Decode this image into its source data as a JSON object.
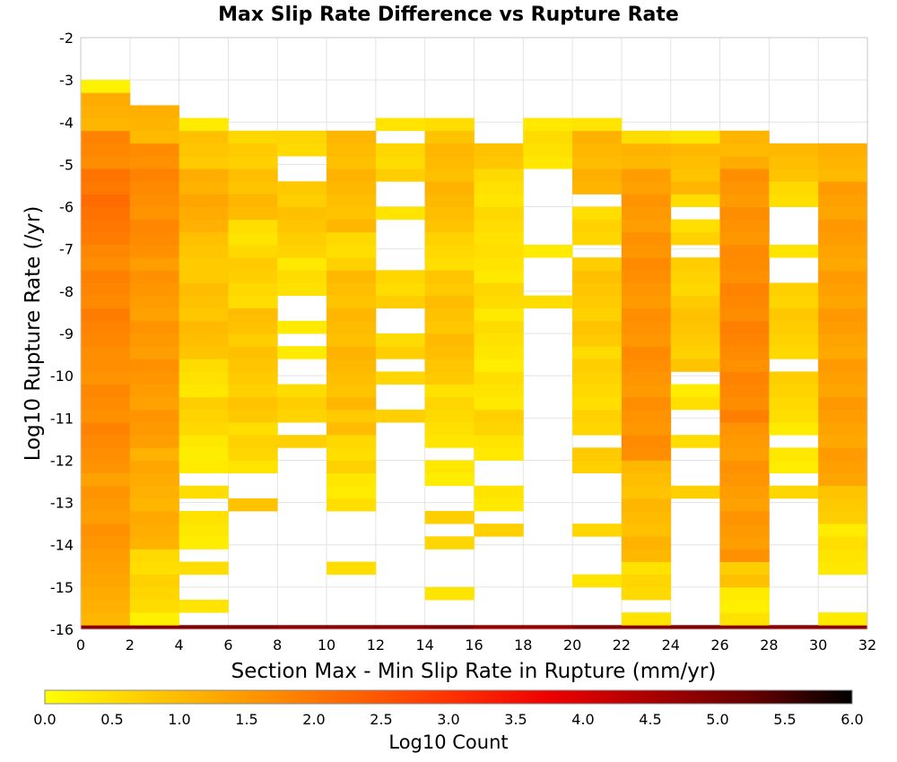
{
  "chart_data": {
    "type": "heatmap",
    "title": "Max Slip Rate Difference vs Rupture Rate",
    "xlabel": "Section Max - Min Slip Rate in Rupture (mm/yr)",
    "ylabel": "Log10 Rupture Rate (/yr)",
    "xlim": [
      0,
      32
    ],
    "ylim": [
      -16,
      -2
    ],
    "x_ticks": [
      "0",
      "2",
      "4",
      "6",
      "8",
      "10",
      "12",
      "14",
      "16",
      "18",
      "20",
      "22",
      "24",
      "26",
      "28",
      "30",
      "32"
    ],
    "y_ticks": [
      "-2",
      "-3",
      "-4",
      "-5",
      "-6",
      "-7",
      "-8",
      "-9",
      "-10",
      "-11",
      "-12",
      "-13",
      "-14",
      "-15",
      "-16"
    ],
    "x_bin_width": 2,
    "y_bin_height": 0.3,
    "grid": true,
    "colorbar": {
      "label": "Log10 Count",
      "range": [
        0,
        6
      ],
      "ticks": [
        "0.0",
        "0.5",
        "1.0",
        "1.5",
        "2.0",
        "2.5",
        "3.0",
        "3.5",
        "4.0",
        "4.5",
        "5.0",
        "5.5",
        "6.0"
      ],
      "placement": "bottom",
      "colors": [
        "#ffff00",
        "#ffcc00",
        "#ff9900",
        "#ff6600",
        "#ff3300",
        "#ee0000",
        "#aa0000",
        "#660000",
        "#000000"
      ]
    },
    "columns": [
      {
        "x0": 0,
        "runs": [
          {
            "from": -16.0,
            "to": -15.9,
            "v": 4.9
          },
          {
            "from": -15.9,
            "to": -14.7,
            "v": 1.2
          },
          {
            "from": -14.7,
            "to": -12.3,
            "v": 1.5
          },
          {
            "from": -12.3,
            "to": -9.6,
            "v": 1.7
          },
          {
            "from": -9.6,
            "to": -6.9,
            "v": 1.8
          },
          {
            "from": -6.9,
            "to": -5.1,
            "v": 2.05
          },
          {
            "from": -5.1,
            "to": -4.2,
            "v": 1.8
          },
          {
            "from": -4.2,
            "to": -3.3,
            "v": 1.2
          },
          {
            "from": -3.3,
            "to": -3.0,
            "v": 0.2
          }
        ]
      },
      {
        "x0": 2,
        "runs": [
          {
            "from": -16.0,
            "to": -15.9,
            "v": 4.9
          },
          {
            "from": -15.9,
            "to": -15.6,
            "v": 0.2
          },
          {
            "from": -15.6,
            "to": -14.1,
            "v": 0.6
          },
          {
            "from": -14.1,
            "to": -11.7,
            "v": 1.2
          },
          {
            "from": -11.7,
            "to": -7.2,
            "v": 1.5
          },
          {
            "from": -7.2,
            "to": -4.5,
            "v": 1.7
          },
          {
            "from": -4.5,
            "to": -3.6,
            "v": 1.1
          }
        ]
      },
      {
        "x0": 4,
        "runs": [
          {
            "from": -16.0,
            "to": -15.9,
            "v": 4.9
          },
          {
            "from": -15.6,
            "to": -15.3,
            "v": 0.4
          },
          {
            "from": -14.7,
            "to": -14.4,
            "v": 0.5
          },
          {
            "from": -14.1,
            "to": -13.2,
            "v": 0.3
          },
          {
            "from": -12.9,
            "to": -12.6,
            "v": 0.5
          },
          {
            "from": -12.3,
            "to": -12.0,
            "v": 0.3
          },
          {
            "from": -12.0,
            "to": -11.4,
            "v": 0.3
          },
          {
            "from": -11.4,
            "to": -10.5,
            "v": 0.6
          },
          {
            "from": -10.5,
            "to": -9.6,
            "v": 0.4
          },
          {
            "from": -9.6,
            "to": -7.5,
            "v": 0.9
          },
          {
            "from": -7.5,
            "to": -6.6,
            "v": 0.8
          },
          {
            "from": -6.6,
            "to": -5.1,
            "v": 1.2
          },
          {
            "from": -5.1,
            "to": -4.2,
            "v": 0.8
          },
          {
            "from": -4.2,
            "to": -3.9,
            "v": 0.3
          }
        ]
      },
      {
        "x0": 6,
        "runs": [
          {
            "from": -16.0,
            "to": -15.9,
            "v": 4.9
          },
          {
            "from": -13.2,
            "to": -12.9,
            "v": 0.9
          },
          {
            "from": -12.3,
            "to": -12.0,
            "v": 0.4
          },
          {
            "from": -12.0,
            "to": -11.1,
            "v": 0.6
          },
          {
            "from": -11.1,
            "to": -9.0,
            "v": 0.8
          },
          {
            "from": -9.0,
            "to": -8.4,
            "v": 0.9
          },
          {
            "from": -8.4,
            "to": -7.8,
            "v": 0.5
          },
          {
            "from": -7.8,
            "to": -6.9,
            "v": 0.7
          },
          {
            "from": -6.9,
            "to": -6.3,
            "v": 0.4
          },
          {
            "from": -6.3,
            "to": -5.1,
            "v": 1.0
          },
          {
            "from": -5.1,
            "to": -4.2,
            "v": 0.7
          }
        ]
      },
      {
        "x0": 8,
        "runs": [
          {
            "from": -16.0,
            "to": -15.9,
            "v": 4.8
          },
          {
            "from": -11.7,
            "to": -11.4,
            "v": 0.7
          },
          {
            "from": -11.1,
            "to": -10.2,
            "v": 0.6
          },
          {
            "from": -9.6,
            "to": -9.3,
            "v": 0.3
          },
          {
            "from": -9.0,
            "to": -8.7,
            "v": 0.3
          },
          {
            "from": -8.1,
            "to": -7.2,
            "v": 0.4
          },
          {
            "from": -7.2,
            "to": -6.6,
            "v": 0.6
          },
          {
            "from": -6.6,
            "to": -5.4,
            "v": 0.8
          },
          {
            "from": -4.8,
            "to": -4.2,
            "v": 0.5
          }
        ]
      },
      {
        "x0": 10,
        "runs": [
          {
            "from": -16.0,
            "to": -15.9,
            "v": 4.8
          },
          {
            "from": -14.7,
            "to": -14.4,
            "v": 0.5
          },
          {
            "from": -13.2,
            "to": -12.3,
            "v": 0.4
          },
          {
            "from": -12.3,
            "to": -11.4,
            "v": 0.6
          },
          {
            "from": -11.4,
            "to": -10.8,
            "v": 0.9
          },
          {
            "from": -10.8,
            "to": -7.5,
            "v": 1.0
          },
          {
            "from": -7.5,
            "to": -6.6,
            "v": 0.6
          },
          {
            "from": -6.6,
            "to": -4.2,
            "v": 1.0
          }
        ]
      },
      {
        "x0": 12,
        "runs": [
          {
            "from": -16.0,
            "to": -15.9,
            "v": 4.8
          },
          {
            "from": -11.1,
            "to": -10.8,
            "v": 0.7
          },
          {
            "from": -10.2,
            "to": -9.9,
            "v": 0.6
          },
          {
            "from": -9.6,
            "to": -9.0,
            "v": 0.6
          },
          {
            "from": -8.4,
            "to": -7.5,
            "v": 0.6
          },
          {
            "from": -6.3,
            "to": -6.0,
            "v": 0.4
          },
          {
            "from": -5.4,
            "to": -4.5,
            "v": 0.6
          },
          {
            "from": -4.2,
            "to": -3.9,
            "v": 0.4
          }
        ]
      },
      {
        "x0": 14,
        "runs": [
          {
            "from": -16.0,
            "to": -15.9,
            "v": 4.9
          },
          {
            "from": -15.3,
            "to": -15.0,
            "v": 0.4
          },
          {
            "from": -14.1,
            "to": -13.8,
            "v": 0.6
          },
          {
            "from": -13.5,
            "to": -13.2,
            "v": 0.7
          },
          {
            "from": -12.6,
            "to": -12.0,
            "v": 0.4
          },
          {
            "from": -11.7,
            "to": -10.2,
            "v": 0.5
          },
          {
            "from": -10.2,
            "to": -7.5,
            "v": 0.9
          },
          {
            "from": -7.5,
            "to": -6.6,
            "v": 0.6
          },
          {
            "from": -6.6,
            "to": -4.2,
            "v": 1.0
          },
          {
            "from": -4.2,
            "to": -3.9,
            "v": 0.5
          }
        ]
      },
      {
        "x0": 16,
        "runs": [
          {
            "from": -16.0,
            "to": -15.9,
            "v": 4.7
          },
          {
            "from": -13.8,
            "to": -13.5,
            "v": 0.7
          },
          {
            "from": -13.2,
            "to": -12.6,
            "v": 0.4
          },
          {
            "from": -12.0,
            "to": -11.4,
            "v": 0.4
          },
          {
            "from": -11.4,
            "to": -10.8,
            "v": 0.7
          },
          {
            "from": -10.8,
            "to": -8.4,
            "v": 0.4
          },
          {
            "from": -8.4,
            "to": -7.8,
            "v": 0.6
          },
          {
            "from": -7.8,
            "to": -6.9,
            "v": 0.4
          },
          {
            "from": -6.9,
            "to": -5.1,
            "v": 0.5
          },
          {
            "from": -5.1,
            "to": -4.5,
            "v": 0.9
          }
        ]
      },
      {
        "x0": 18,
        "runs": [
          {
            "from": -16.0,
            "to": -15.9,
            "v": 4.7
          },
          {
            "from": -8.4,
            "to": -8.1,
            "v": 0.5
          },
          {
            "from": -7.2,
            "to": -6.9,
            "v": 0.3
          },
          {
            "from": -5.1,
            "to": -3.9,
            "v": 0.4
          }
        ]
      },
      {
        "x0": 20,
        "runs": [
          {
            "from": -16.0,
            "to": -15.9,
            "v": 4.9
          },
          {
            "from": -15.0,
            "to": -14.7,
            "v": 0.4
          },
          {
            "from": -13.8,
            "to": -13.5,
            "v": 0.6
          },
          {
            "from": -12.3,
            "to": -11.7,
            "v": 0.7
          },
          {
            "from": -11.4,
            "to": -9.3,
            "v": 0.6
          },
          {
            "from": -9.3,
            "to": -7.2,
            "v": 0.8
          },
          {
            "from": -6.9,
            "to": -6.0,
            "v": 0.6
          },
          {
            "from": -5.7,
            "to": -4.2,
            "v": 1.1
          },
          {
            "from": -4.2,
            "to": -3.9,
            "v": 0.4
          }
        ]
      },
      {
        "x0": 22,
        "runs": [
          {
            "from": -16.0,
            "to": -15.9,
            "v": 4.9
          },
          {
            "from": -15.9,
            "to": -15.6,
            "v": 0.4
          },
          {
            "from": -15.3,
            "to": -14.4,
            "v": 0.5
          },
          {
            "from": -14.4,
            "to": -12.0,
            "v": 1.0
          },
          {
            "from": -12.0,
            "to": -7.2,
            "v": 1.6
          },
          {
            "from": -7.2,
            "to": -5.1,
            "v": 1.5
          },
          {
            "from": -5.1,
            "to": -4.5,
            "v": 1.0
          },
          {
            "from": -4.5,
            "to": -4.2,
            "v": 0.5
          }
        ]
      },
      {
        "x0": 24,
        "runs": [
          {
            "from": -16.0,
            "to": -15.9,
            "v": 4.9
          },
          {
            "from": -12.9,
            "to": -12.6,
            "v": 0.7
          },
          {
            "from": -11.7,
            "to": -11.4,
            "v": 0.5
          },
          {
            "from": -10.8,
            "to": -10.2,
            "v": 0.4
          },
          {
            "from": -9.9,
            "to": -8.4,
            "v": 0.8
          },
          {
            "from": -8.4,
            "to": -7.2,
            "v": 0.7
          },
          {
            "from": -6.9,
            "to": -6.3,
            "v": 0.6
          },
          {
            "from": -6.0,
            "to": -5.7,
            "v": 0.5
          },
          {
            "from": -5.7,
            "to": -4.5,
            "v": 1.0
          },
          {
            "from": -4.5,
            "to": -4.2,
            "v": 0.4
          }
        ]
      },
      {
        "x0": 26,
        "runs": [
          {
            "from": -16.0,
            "to": -15.9,
            "v": 4.9
          },
          {
            "from": -15.9,
            "to": -15.0,
            "v": 0.3
          },
          {
            "from": -15.0,
            "to": -14.4,
            "v": 0.8
          },
          {
            "from": -14.4,
            "to": -11.1,
            "v": 1.5
          },
          {
            "from": -11.1,
            "to": -7.2,
            "v": 1.75
          },
          {
            "from": -7.2,
            "to": -5.1,
            "v": 1.6
          },
          {
            "from": -5.1,
            "to": -4.2,
            "v": 1.1
          }
        ]
      },
      {
        "x0": 28,
        "runs": [
          {
            "from": -16.0,
            "to": -15.9,
            "v": 4.8
          },
          {
            "from": -12.9,
            "to": -12.6,
            "v": 0.6
          },
          {
            "from": -12.3,
            "to": -11.7,
            "v": 0.4
          },
          {
            "from": -11.4,
            "to": -11.1,
            "v": 0.3
          },
          {
            "from": -11.1,
            "to": -9.9,
            "v": 0.6
          },
          {
            "from": -9.6,
            "to": -7.8,
            "v": 0.7
          },
          {
            "from": -7.2,
            "to": -6.9,
            "v": 0.4
          },
          {
            "from": -6.0,
            "to": -5.4,
            "v": 0.6
          },
          {
            "from": -5.4,
            "to": -4.5,
            "v": 1.0
          }
        ]
      },
      {
        "x0": 30,
        "runs": [
          {
            "from": -16.0,
            "to": -15.9,
            "v": 4.8
          },
          {
            "from": -15.9,
            "to": -15.6,
            "v": 0.3
          },
          {
            "from": -14.7,
            "to": -13.5,
            "v": 0.4
          },
          {
            "from": -13.5,
            "to": -12.6,
            "v": 0.8
          },
          {
            "from": -12.6,
            "to": -5.4,
            "v": 1.4
          },
          {
            "from": -5.4,
            "to": -4.5,
            "v": 1.1
          }
        ]
      }
    ]
  }
}
